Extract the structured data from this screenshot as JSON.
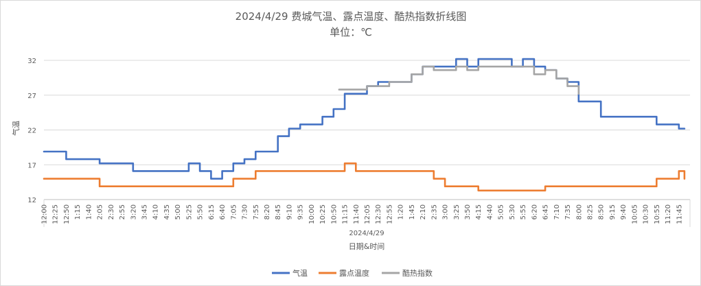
{
  "chart_data": {
    "type": "line",
    "title": "2024/4/29 费城气温、露点温度、酷热指数折线图",
    "subtitle": "单位：℃",
    "xlabel": "日期&时间",
    "xgroup": "2024/4/29",
    "ylabel": "气温",
    "ylim": [
      12,
      32
    ],
    "yticks": [
      "12",
      "17",
      "22",
      "27",
      "32"
    ],
    "grid": true,
    "legend_position": "bottom",
    "x_tick_labels": [
      "12:00",
      "12:25",
      "12:50",
      "1:15",
      "1:40",
      "2:05",
      "2:30",
      "2:55",
      "3:20",
      "3:45",
      "4:10",
      "4:35",
      "5:00",
      "5:25",
      "5:50",
      "6:15",
      "6:40",
      "7:05",
      "7:30",
      "7:55",
      "8:20",
      "8:45",
      "9:10",
      "9:35",
      "10:00",
      "10:25",
      "10:50",
      "11:15",
      "11:40",
      "12:05",
      "12:30",
      "12:55",
      "1:20",
      "1:45",
      "2:10",
      "2:35",
      "3:00",
      "3:25",
      "3:50",
      "4:15",
      "4:40",
      "5:05",
      "5:30",
      "5:55",
      "6:20",
      "6:45",
      "7:10",
      "7:35",
      "8:00",
      "8:25",
      "8:50",
      "9:15",
      "9:40",
      "10:05",
      "10:30",
      "10:55",
      "11:20",
      "11:45"
    ],
    "series": [
      {
        "name": "气温",
        "color": "#4472c4",
        "x": [
          0,
          1,
          2,
          3,
          4,
          5,
          6,
          7,
          8,
          9,
          10,
          11,
          12,
          13,
          14,
          15,
          16,
          17,
          18,
          19,
          20,
          21,
          22,
          23,
          24,
          25,
          26,
          27,
          28,
          29,
          30,
          31,
          32,
          33,
          34,
          35,
          36,
          37,
          38,
          39,
          40,
          41,
          42,
          43,
          44,
          45,
          46,
          47,
          48,
          49,
          50,
          51,
          52,
          53,
          54,
          55,
          56,
          57,
          57.5
        ],
        "values": [
          18.9,
          18.9,
          17.8,
          17.8,
          17.8,
          17.2,
          17.2,
          17.2,
          16.1,
          16.1,
          16.1,
          16.1,
          16.1,
          17.2,
          16.1,
          15.0,
          16.1,
          17.2,
          17.8,
          18.9,
          18.9,
          21.1,
          22.2,
          22.8,
          22.8,
          23.9,
          25.0,
          27.2,
          27.2,
          28.3,
          28.9,
          28.9,
          28.9,
          30.0,
          31.1,
          31.1,
          31.1,
          32.2,
          31.1,
          32.2,
          32.2,
          32.2,
          31.1,
          32.2,
          31.1,
          30.6,
          29.4,
          28.9,
          26.1,
          26.1,
          23.9,
          23.9,
          23.9,
          23.9,
          23.9,
          22.8,
          22.8,
          22.2,
          22.2
        ]
      },
      {
        "name": "露点温度",
        "color": "#ed7d31",
        "x": [
          0,
          1,
          2,
          3,
          4,
          5,
          6,
          7,
          8,
          9,
          10,
          11,
          12,
          13,
          14,
          15,
          16,
          17,
          18,
          19,
          20,
          21,
          22,
          23,
          24,
          25,
          26,
          27,
          28,
          29,
          30,
          31,
          32,
          33,
          34,
          35,
          36,
          37,
          38,
          39,
          40,
          41,
          42,
          43,
          44,
          45,
          46,
          47,
          48,
          49,
          50,
          51,
          52,
          53,
          54,
          55,
          56,
          57,
          57.5
        ],
        "values": [
          15.0,
          15.0,
          15.0,
          15.0,
          15.0,
          13.9,
          13.9,
          13.9,
          13.9,
          13.9,
          13.9,
          13.9,
          13.9,
          13.9,
          13.9,
          13.9,
          13.9,
          15.0,
          15.0,
          16.1,
          16.1,
          16.1,
          16.1,
          16.1,
          16.1,
          16.1,
          16.1,
          17.2,
          16.1,
          16.1,
          16.1,
          16.1,
          16.1,
          16.1,
          16.1,
          15.0,
          13.9,
          13.9,
          13.9,
          13.3,
          13.3,
          13.3,
          13.3,
          13.3,
          13.3,
          13.9,
          13.9,
          13.9,
          13.9,
          13.9,
          13.9,
          13.9,
          13.9,
          13.9,
          13.9,
          15.0,
          15.0,
          16.1,
          15.0
        ]
      },
      {
        "name": "酷热指数",
        "color": "#a5a5a5",
        "x": [
          26.5,
          27,
          28,
          29,
          30,
          31,
          32,
          33,
          34,
          35,
          36,
          37,
          38,
          39,
          40,
          41,
          42,
          43,
          44,
          45,
          46,
          47,
          48
        ],
        "values": [
          27.8,
          27.8,
          27.8,
          28.3,
          28.3,
          28.9,
          28.9,
          30.0,
          31.1,
          30.6,
          30.6,
          31.1,
          30.6,
          31.1,
          31.1,
          31.1,
          31.1,
          31.1,
          30.0,
          30.6,
          29.4,
          28.3,
          27.2
        ]
      }
    ]
  }
}
